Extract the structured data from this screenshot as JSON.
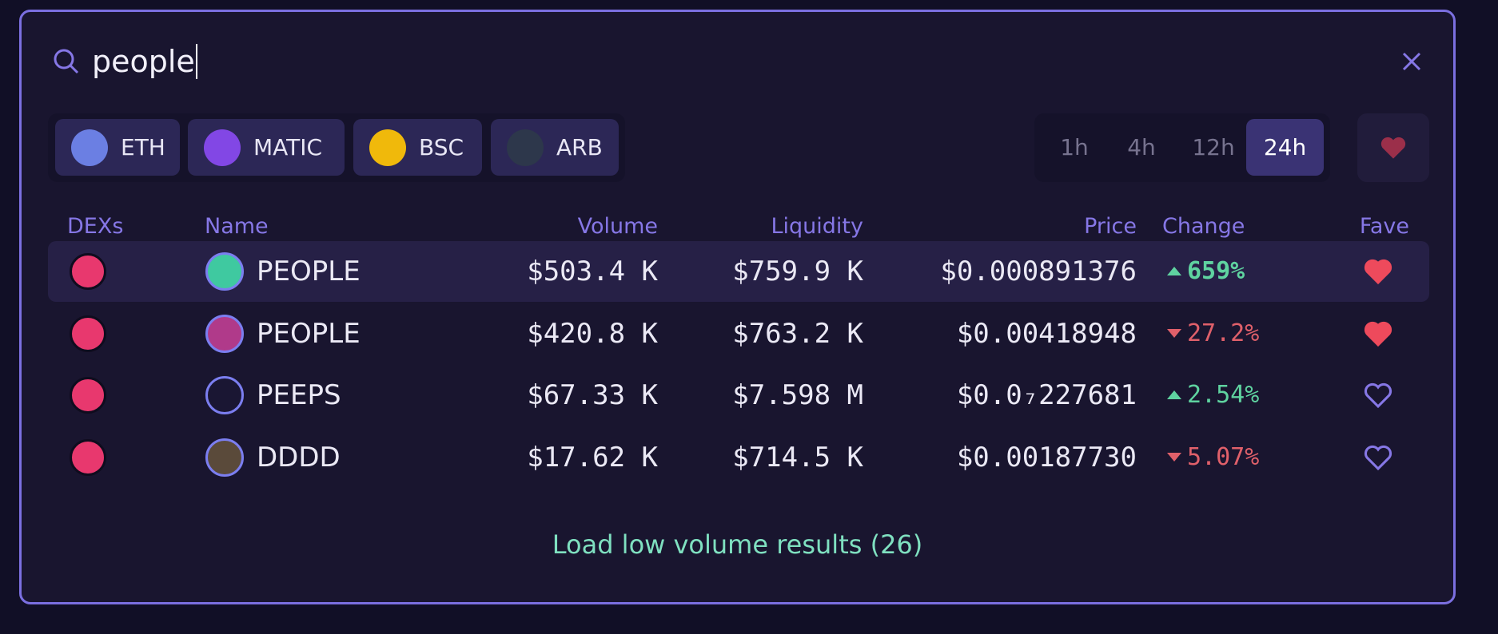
{
  "search": {
    "query": "people"
  },
  "chains": [
    {
      "label": "ETH",
      "color": "#6b7fe3"
    },
    {
      "label": "MATIC",
      "color": "#8247e5"
    },
    {
      "label": "BSC",
      "color": "#f0b90b"
    },
    {
      "label": "ARB",
      "color": "#2d374b"
    }
  ],
  "timeframes": {
    "options": [
      "1h",
      "4h",
      "12h",
      "24h"
    ],
    "active_index": 3
  },
  "table": {
    "headers": [
      "DEXs",
      "Name",
      "Volume",
      "Liquidity",
      "Price",
      "Change",
      "Fave"
    ],
    "rows": [
      {
        "name": "PEOPLE",
        "volume": "$503.4 K",
        "liquidity": "$759.9 K",
        "price": "$0.000891376",
        "change": "659%",
        "direction": "up",
        "highlight": true,
        "favorite": true,
        "icon": "#3fc9a0"
      },
      {
        "name": "PEOPLE",
        "volume": "$420.8 K",
        "liquidity": "$763.2 K",
        "price": "$0.00418948",
        "change": "27.2%",
        "direction": "down",
        "highlight": false,
        "favorite": true,
        "icon": "#b03a8a"
      },
      {
        "name": "PEEPS",
        "volume": "$67.33 K",
        "liquidity": "$7.598 M",
        "price": "$0.0₇227681",
        "change": "2.54%",
        "direction": "up",
        "highlight": false,
        "favorite": false,
        "icon": "#1a1633"
      },
      {
        "name": "DDDD",
        "volume": "$17.62 K",
        "liquidity": "$714.5 K",
        "price": "$0.00187730",
        "change": "5.07%",
        "direction": "down",
        "highlight": false,
        "favorite": false,
        "icon": "#5a4a3a"
      }
    ]
  },
  "footer": {
    "link": "Load low volume results (26)"
  }
}
